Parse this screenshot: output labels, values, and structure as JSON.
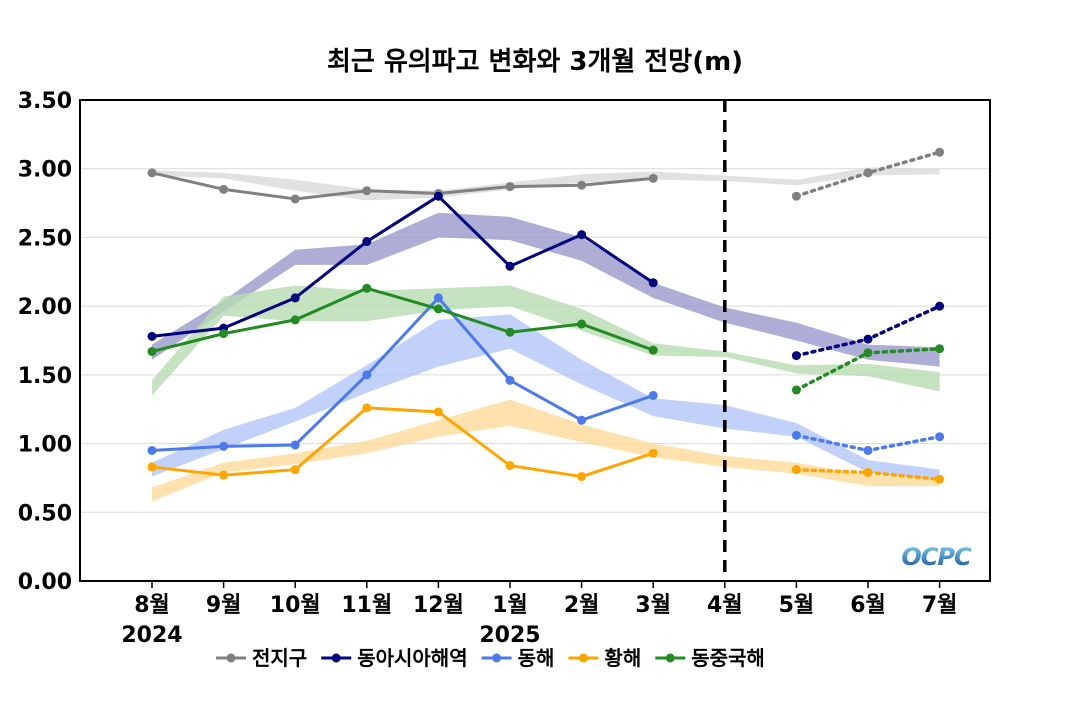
{
  "chart_data": {
    "type": "line",
    "title": "최근 유의파고 변화와 3개월 전망(m)",
    "categories": [
      "8월",
      "9월",
      "10월",
      "11월",
      "12월",
      "1월",
      "2월",
      "3월",
      "4월",
      "5월",
      "6월",
      "7월"
    ],
    "year_labels": [
      {
        "index": 0,
        "label": "2024"
      },
      {
        "index": 5,
        "label": "2025"
      }
    ],
    "ylim": [
      0,
      3.5
    ],
    "yticks": [
      "0.00",
      "0.50",
      "1.00",
      "1.50",
      "2.00",
      "2.50",
      "3.00",
      "3.50"
    ],
    "grid": true,
    "divider_after_index": 8,
    "legend_position": "bottom",
    "logo_text": "OCPC",
    "series": [
      {
        "name": "전지구",
        "color": "#808080",
        "band_color": "#d9d9d9",
        "observed": [
          2.97,
          2.85,
          2.78,
          2.84,
          2.82,
          2.87,
          2.88,
          2.93
        ],
        "forecast": [
          2.8,
          2.97,
          3.12
        ],
        "band_upper": [
          2.99,
          2.97,
          2.92,
          2.85,
          2.84,
          2.9,
          2.96,
          2.98,
          2.95,
          2.92,
          3.01,
          3.0
        ],
        "band_lower": [
          2.95,
          2.93,
          2.84,
          2.77,
          2.79,
          2.85,
          2.9,
          2.92,
          2.91,
          2.88,
          2.95,
          2.96
        ]
      },
      {
        "name": "동아시아해역",
        "color": "#000080",
        "band_color": "#9999cc",
        "observed": [
          1.78,
          1.84,
          2.06,
          2.47,
          2.8,
          2.29,
          2.52,
          2.17
        ],
        "forecast": [
          1.64,
          1.76,
          2.0
        ],
        "band_upper": [
          1.72,
          2.04,
          2.41,
          2.45,
          2.68,
          2.65,
          2.5,
          2.17,
          1.99,
          1.88,
          1.72,
          1.7
        ],
        "band_lower": [
          1.61,
          1.96,
          2.3,
          2.3,
          2.5,
          2.48,
          2.33,
          2.06,
          1.88,
          1.75,
          1.61,
          1.56
        ]
      },
      {
        "name": "동해",
        "color": "#4a7aee",
        "band_color": "#b3c6f7",
        "observed": [
          0.95,
          0.98,
          0.99,
          1.5,
          2.06,
          1.46,
          1.17,
          1.35
        ],
        "forecast": [
          1.06,
          0.95,
          1.05
        ],
        "band_upper": [
          0.86,
          1.1,
          1.26,
          1.57,
          1.9,
          1.94,
          1.61,
          1.33,
          1.28,
          1.15,
          0.88,
          0.81
        ],
        "band_lower": [
          0.76,
          0.96,
          1.16,
          1.37,
          1.56,
          1.69,
          1.43,
          1.2,
          1.11,
          1.05,
          0.79,
          0.73
        ]
      },
      {
        "name": "황해",
        "color": "#ffa500",
        "band_color": "#ffd99a",
        "observed": [
          0.83,
          0.77,
          0.81,
          1.26,
          1.23,
          0.84,
          0.76,
          0.93
        ],
        "forecast": [
          0.81,
          0.79,
          0.74
        ],
        "band_upper": [
          0.68,
          0.86,
          0.93,
          1.02,
          1.17,
          1.32,
          1.14,
          1.0,
          0.91,
          0.86,
          0.77,
          0.74
        ],
        "band_lower": [
          0.58,
          0.79,
          0.85,
          0.93,
          1.05,
          1.13,
          1.01,
          0.9,
          0.83,
          0.78,
          0.69,
          0.69
        ]
      },
      {
        "name": "동중국해",
        "color": "#228b22",
        "band_color": "#b7dcb0",
        "observed": [
          1.67,
          1.8,
          1.9,
          2.13,
          1.98,
          1.81,
          1.87,
          1.68
        ],
        "forecast": [
          1.39,
          1.66,
          1.69
        ],
        "band_upper": [
          1.46,
          2.07,
          2.15,
          2.11,
          2.13,
          2.15,
          1.98,
          1.73,
          1.67,
          1.57,
          1.58,
          1.52
        ],
        "band_lower": [
          1.35,
          1.93,
          1.89,
          1.89,
          1.97,
          2.0,
          1.82,
          1.64,
          1.63,
          1.51,
          1.49,
          1.38
        ]
      }
    ]
  }
}
